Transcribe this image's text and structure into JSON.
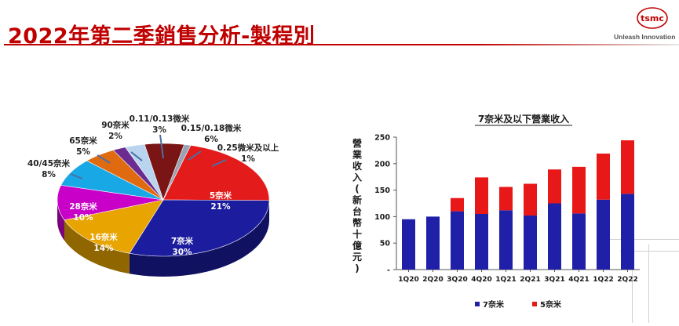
{
  "slide": {
    "title": "2022年第二季銷售分析-製程別",
    "logo_text": "tsmc",
    "tagline": "Unleash Innovation",
    "accent_color": "#c00000"
  },
  "chart_data": [
    {
      "type": "pie",
      "title": "",
      "slices": [
        {
          "label": "5奈米",
          "value": 21,
          "value_label": "21%",
          "color": "#e31b1b"
        },
        {
          "label": "7奈米",
          "value": 30,
          "value_label": "30%",
          "color": "#1c1c9e"
        },
        {
          "label": "16奈米",
          "value": 14,
          "value_label": "14%",
          "color": "#e8a400"
        },
        {
          "label": "28奈米",
          "value": 10,
          "value_label": "10%",
          "color": "#c800c8"
        },
        {
          "label": "40/45奈米",
          "value": 8,
          "value_label": "8%",
          "color": "#19a8e6"
        },
        {
          "label": "65奈米",
          "value": 5,
          "value_label": "5%",
          "color": "#e06a10"
        },
        {
          "label": "90奈米",
          "value": 2,
          "value_label": "2%",
          "color": "#6a2c91"
        },
        {
          "label": "0.11/0.13微米",
          "value": 3,
          "value_label": "3%",
          "color": "#b8d4ee"
        },
        {
          "label": "0.15/0.18微米",
          "value": 6,
          "value_label": "6%",
          "color": "#7a1515"
        },
        {
          "label": "0.25微米及以上",
          "value": 1,
          "value_label": "1%",
          "color": "#9aa3b5"
        }
      ]
    },
    {
      "type": "bar",
      "stacked": true,
      "title": "7奈米及以下營業收入",
      "ylabel": "營業收入(新台幣十億元)",
      "xlabel": "",
      "ylim": [
        0,
        250
      ],
      "yticks": [
        "-",
        "50",
        "100",
        "150",
        "200",
        "250"
      ],
      "categories": [
        "1Q20",
        "2Q20",
        "3Q20",
        "4Q20",
        "1Q21",
        "2Q21",
        "3Q21",
        "4Q21",
        "1Q22",
        "2Q22"
      ],
      "series": [
        {
          "name": "7奈米",
          "color": "#1f1fa8",
          "values": [
            95,
            100,
            110,
            105,
            112,
            102,
            125,
            106,
            132,
            143
          ]
        },
        {
          "name": "5奈米",
          "color": "#e81818",
          "values": [
            0,
            0,
            25,
            69,
            44,
            60,
            64,
            88,
            87,
            101
          ]
        }
      ],
      "legend_position": "bottom"
    }
  ]
}
